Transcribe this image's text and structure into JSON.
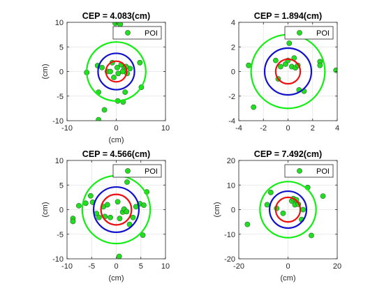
{
  "figure": {
    "background": "#ffffff"
  },
  "chart_data": [
    {
      "type": "scatter",
      "title": "CEP = 4.083(cm)",
      "xlabel": "(cm)",
      "ylabel": "(cm)",
      "xlim": [
        -10,
        10
      ],
      "ylim": [
        -10,
        10
      ],
      "xticks": [
        -10,
        0,
        10
      ],
      "yticks": [
        -10,
        -5,
        0,
        5,
        10
      ],
      "xtick_labels": [
        "-10",
        "0",
        "10"
      ],
      "ytick_labels": [
        "-10",
        "-5",
        "0",
        "5",
        "10"
      ],
      "grid": true,
      "legend_position": "top-right",
      "series": [
        {
          "name": "POI",
          "color": "#22dd22",
          "x": [
            -0.2,
            0.8,
            -6.0,
            -3.8,
            -2.9,
            -3.6,
            -1.8,
            -0.8,
            0.2,
            1.0,
            1.6,
            2.2,
            2.8,
            2.0,
            1.3,
            0.4,
            -1.2,
            -0.5,
            1.8,
            4.8,
            5.1,
            1.4,
            0.3,
            -2.4,
            -3.6
          ],
          "y": [
            9.8,
            9.6,
            -0.2,
            1.2,
            0.8,
            -4.2,
            0.0,
            1.8,
            0.8,
            1.4,
            0.6,
            -0.4,
            0.6,
            1.0,
            0.0,
            -0.4,
            0.0,
            -1.2,
            -4.2,
            1.8,
            -3.2,
            -6.2,
            -6.0,
            -7.8,
            -9.8
          ]
        }
      ],
      "circles": [
        {
          "radius": 2.1,
          "color": "#ee1111"
        },
        {
          "radius": 3.7,
          "color": "#1111cc"
        },
        {
          "radius": 6.0,
          "color": "#11ee11"
        }
      ]
    },
    {
      "type": "scatter",
      "title": "CEP = 1.894(cm)",
      "xlabel": "",
      "ylabel": "",
      "xlim": [
        -4,
        4
      ],
      "ylim": [
        -4,
        4
      ],
      "xticks": [
        -4,
        -2,
        0,
        2,
        4
      ],
      "yticks": [
        -4,
        -2,
        0,
        2,
        4
      ],
      "xtick_labels": [
        "-4",
        "-2",
        "0",
        "2",
        "4"
      ],
      "ytick_labels": [
        "-4",
        "-2",
        "0",
        "2",
        "4"
      ],
      "grid": true,
      "legend_position": "top-right",
      "series": [
        {
          "name": "POI",
          "color": "#22dd22",
          "x": [
            -1.0,
            -0.6,
            -0.2,
            0.0,
            0.3,
            0.5,
            0.6,
            0.8,
            -0.8,
            0.1,
            -3.2,
            -2.8,
            0.9,
            1.3,
            2.6,
            2.6,
            3.9
          ],
          "y": [
            0.9,
            0.4,
            0.6,
            0.9,
            0.4,
            1.1,
            0.3,
            0.5,
            -0.6,
            2.3,
            0.5,
            -2.9,
            -1.5,
            -1.6,
            0.8,
            0.5,
            0.1
          ]
        }
      ],
      "circles": [
        {
          "radius": 1.0,
          "color": "#ee1111"
        },
        {
          "radius": 1.9,
          "color": "#1111cc"
        },
        {
          "radius": 3.0,
          "color": "#11ee11"
        }
      ]
    },
    {
      "type": "scatter",
      "title": "CEP = 4.566(cm)",
      "xlabel": "(cm)",
      "ylabel": "(cm)",
      "xlim": [
        -10,
        10
      ],
      "ylim": [
        -10,
        10
      ],
      "xticks": [
        -10,
        -5,
        0,
        5,
        10
      ],
      "yticks": [
        -10,
        -5,
        0,
        5,
        10
      ],
      "xtick_labels": [
        "-10",
        "-5",
        "0",
        "5",
        "10"
      ],
      "ytick_labels": [
        "-10",
        "-5",
        "0",
        "5",
        "10"
      ],
      "grid": true,
      "legend_position": "top-right",
      "series": [
        {
          "name": "POI",
          "color": "#22dd22",
          "x": [
            -8.8,
            -8.8,
            -7.6,
            -6.2,
            -5.2,
            -4.8,
            -4.0,
            -3.5,
            -2.6,
            -2.3,
            -1.8,
            -1.2,
            0.3,
            0.7,
            1.3,
            1.6,
            2.1,
            2.7,
            3.4,
            4.0,
            4.8,
            5.6,
            6.2,
            0.6,
            5.4,
            2.2
          ],
          "y": [
            -1.8,
            -2.4,
            0.8,
            1.3,
            2.8,
            1.5,
            -0.8,
            -1.6,
            0.6,
            -1.4,
            1.0,
            -1.6,
            1.6,
            -1.8,
            -0.5,
            0.1,
            -0.4,
            -3.0,
            -1.6,
            0.6,
            1.2,
            0.9,
            3.6,
            -9.5,
            -5.2,
            5.6
          ]
        }
      ],
      "circles": [
        {
          "radius": 3.1,
          "color": "#ee1111"
        },
        {
          "radius": 4.6,
          "color": "#1111cc"
        },
        {
          "radius": 6.9,
          "color": "#11ee11"
        }
      ]
    },
    {
      "type": "scatter",
      "title": "CEP = 7.492(cm)",
      "xlabel": "(cm)",
      "ylabel": "(cm)",
      "xlim": [
        -20,
        20
      ],
      "ylim": [
        -20,
        20
      ],
      "xticks": [
        -20,
        0,
        20
      ],
      "yticks": [
        -20,
        -10,
        0,
        10,
        20
      ],
      "xtick_labels": [
        "-20",
        "0",
        "20"
      ],
      "ytick_labels": [
        "-20",
        "-10",
        "0",
        "10",
        "20"
      ],
      "grid": true,
      "legend_position": "top-right",
      "series": [
        {
          "name": "POI",
          "color": "#22dd22",
          "x": [
            -7.0,
            -8.5,
            -4.6,
            -2.0,
            1.5,
            2.2,
            2.8,
            3.4,
            4.2,
            5.5,
            6.1,
            8.0,
            9.5,
            14.2,
            -16.5
          ],
          "y": [
            7.0,
            2.0,
            0.5,
            -1.5,
            3.5,
            4.5,
            2.0,
            4.0,
            2.2,
            -4.0,
            0.0,
            9.0,
            -10.5,
            5.5,
            -6.0
          ]
        }
      ],
      "circles": [
        {
          "radius": 5.0,
          "color": "#ee1111"
        },
        {
          "radius": 7.5,
          "color": "#1111cc"
        },
        {
          "radius": 11.4,
          "color": "#11ee11"
        }
      ]
    }
  ]
}
